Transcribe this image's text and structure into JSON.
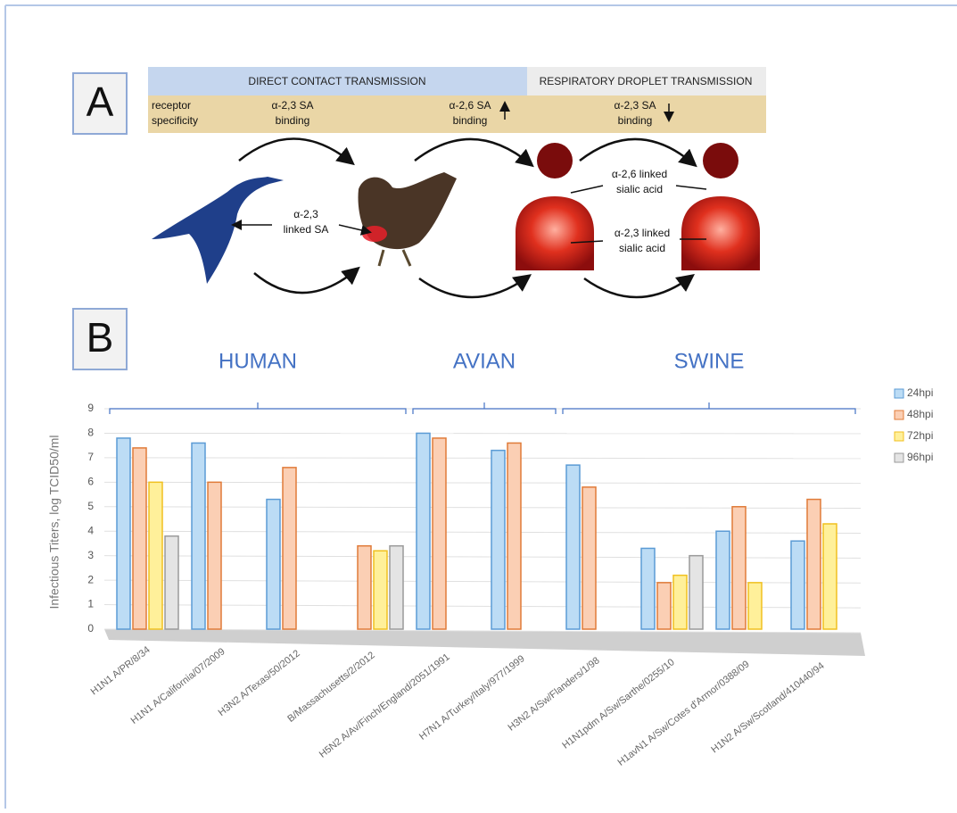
{
  "panel_labels": [
    "A",
    "B"
  ],
  "diagram": {
    "direct_contact": "DIRECT CONTACT TRANSMISSION",
    "respiratory_droplet": "RESPIRATORY DROPLET TRANSMISSION",
    "receptor_specificity": [
      "receptor",
      "specificity"
    ],
    "bindings": [
      [
        "α-2,3 SA",
        "binding"
      ],
      [
        "α-2,6 SA",
        "binding"
      ],
      [
        "α-2,3 SA",
        "binding"
      ]
    ],
    "duck_chicken": [
      "α-2,3",
      "linked SA"
    ],
    "human_upper": [
      "α-2,6 linked",
      "sialic acid"
    ],
    "human_lower": [
      "α-2,3 linked",
      "sialic acid"
    ]
  },
  "chart_data": {
    "type": "bar",
    "groups": [
      "HUMAN",
      "AVIAN",
      "SWINE"
    ],
    "y_label": "Infectious Titers,  log TCID50/ml",
    "categories": [
      "H1N1 A/PR/8/34",
      "H1N1 A/California/07/2009",
      "H3N2 A/Texas/50/2012",
      "B/Massachusetts/2/2012",
      "H5N2  A/Av/Finch/England/2051/1991",
      "H7N1 A/Turkey/Italy/977/1999",
      "H3N2 A/Sw/Flanders/1/98",
      "H1N1pdm A/Sw/Sarthe/0255/10",
      "H1avN1 A/Sw/Cotes d'Armor/0388/09",
      "H1N2 A/Sw/Scotland/410440/94"
    ],
    "series": [
      {
        "name": "24hpi",
        "color": "#bcdcf5",
        "edge_color": "#5b9bd5",
        "values": [
          7.8,
          7.6,
          5.3,
          0,
          8.0,
          7.3,
          6.7,
          3.3,
          4.0,
          3.6
        ]
      },
      {
        "name": "48hpi",
        "color": "#fbcfb4",
        "edge_color": "#e07b39",
        "values": [
          7.4,
          6.0,
          6.6,
          3.4,
          7.8,
          7.6,
          5.8,
          1.9,
          5.0,
          5.3
        ]
      },
      {
        "name": "72hpi",
        "color": "#fff09a",
        "edge_color": "#f0c020",
        "values": [
          6.0,
          0,
          0,
          3.2,
          0,
          0,
          0,
          2.2,
          1.9,
          4.3
        ]
      },
      {
        "name": "96hpi",
        "color": "#e4e4e4",
        "edge_color": "#9a9a9a",
        "values": [
          3.8,
          0,
          0,
          3.4,
          0,
          0,
          0,
          3.0,
          0,
          0
        ]
      }
    ],
    "ylim": [
      0,
      9
    ],
    "yticks": [
      0,
      1,
      2,
      3,
      4,
      5,
      6,
      7,
      8,
      9
    ],
    "grid": true,
    "legend": "right"
  }
}
